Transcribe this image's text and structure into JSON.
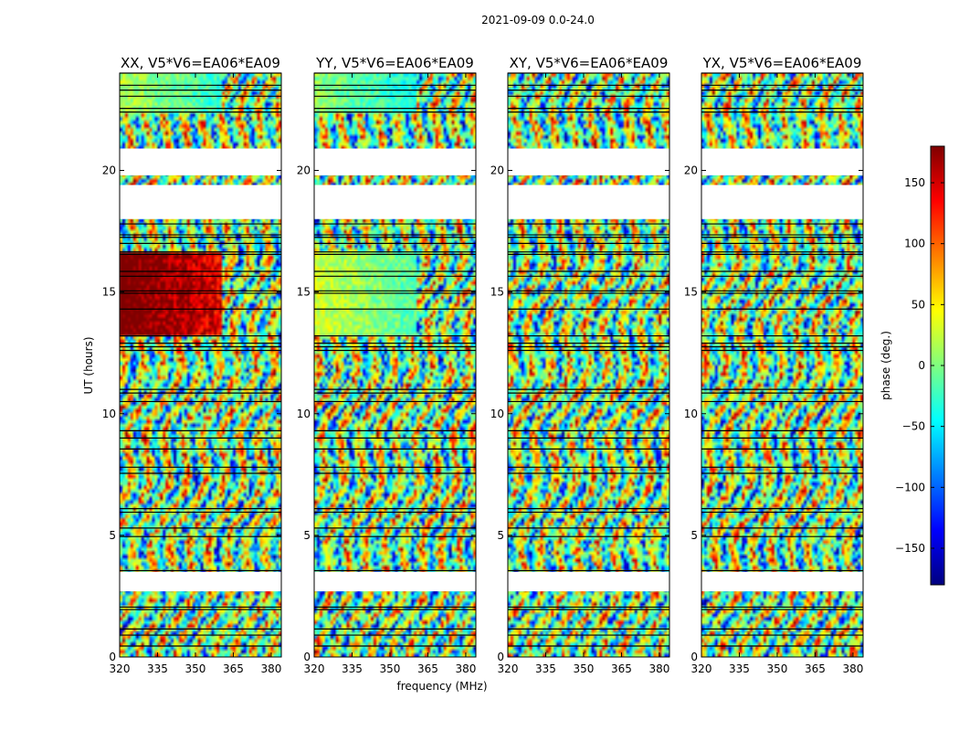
{
  "chart_data": {
    "type": "heatmap",
    "suptitle": "2021-09-09 0.0-24.0",
    "xlabel": "frequency (MHz)",
    "ylabel": "UT (hours)",
    "xlim": [
      320,
      384
    ],
    "ylim": [
      0,
      24
    ],
    "xticks": [
      320,
      335,
      350,
      365,
      380
    ],
    "yticks": [
      0,
      5,
      10,
      15,
      20
    ],
    "colorbar": {
      "label": "phase (deg.)",
      "range": [
        -180,
        180
      ],
      "ticks": [
        150,
        100,
        50,
        0,
        -50,
        -100,
        -150
      ],
      "tick_labels": [
        "150",
        "100",
        "50",
        "0",
        "−50",
        "−100",
        "−150"
      ],
      "colors": [
        "#00007f",
        "#0000ff",
        "#007fff",
        "#00ffff",
        "#7fff7f",
        "#ffff00",
        "#ff7f00",
        "#ff0000",
        "#7f0000"
      ]
    },
    "panels": [
      {
        "title": "XX, V5*V6=EA06*EA09",
        "smooth_rows": [
          [
            13.2,
            16.7,
            200
          ],
          [
            22.4,
            24.0,
            20
          ]
        ]
      },
      {
        "title": "YY, V5*V6=EA06*EA09",
        "smooth_rows": [
          [
            13.2,
            16.7,
            35
          ],
          [
            22.4,
            24.0,
            5
          ]
        ]
      },
      {
        "title": "XY, V5*V6=EA06*EA09",
        "smooth_rows": []
      },
      {
        "title": "YX, V5*V6=EA06*EA09",
        "smooth_rows": []
      }
    ],
    "data_gaps_hours": [
      [
        2.7,
        3.5
      ],
      [
        18.0,
        19.4
      ],
      [
        19.8,
        20.9
      ]
    ],
    "flag_lines_hours": [
      0.45,
      0.9,
      1.15,
      1.95,
      2.05,
      3.55,
      4.95,
      5.3,
      5.95,
      6.1,
      7.55,
      7.8,
      8.55,
      9.0,
      9.3,
      10.5,
      10.85,
      11.0,
      12.6,
      12.75,
      12.9,
      13.2,
      14.3,
      14.95,
      15.05,
      15.65,
      15.85,
      16.55,
      16.65,
      17.0,
      17.25,
      17.35,
      17.8,
      22.4,
      22.55,
      23.05,
      23.3,
      23.5,
      24.0
    ]
  }
}
